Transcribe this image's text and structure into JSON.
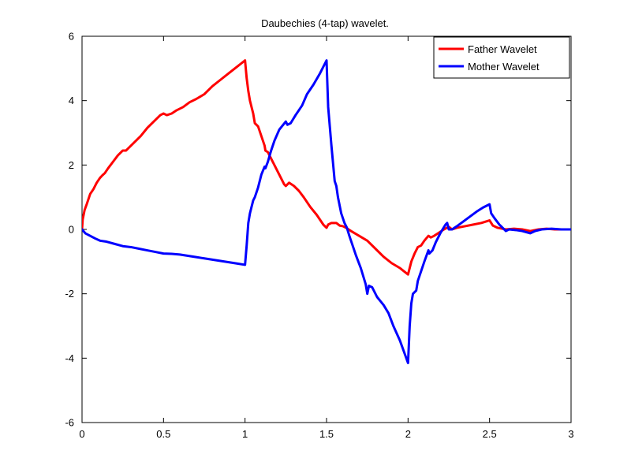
{
  "chart_data": {
    "type": "line",
    "title": "Daubechies (4-tap) wavelet.",
    "xlabel": "",
    "ylabel": "",
    "xlim": [
      0,
      3
    ],
    "ylim": [
      -6,
      6
    ],
    "x_ticks": [
      0,
      0.5,
      1,
      1.5,
      2,
      2.5,
      3
    ],
    "x_tick_labels": [
      "0",
      "0.5",
      "1",
      "1.5",
      "2",
      "2.5",
      "3"
    ],
    "y_ticks": [
      -6,
      -4,
      -2,
      0,
      2,
      4,
      6
    ],
    "y_tick_labels": [
      "-6",
      "-4",
      "-2",
      "0",
      "2",
      "4",
      "6"
    ],
    "grid": false,
    "legend": {
      "position": "top-right"
    },
    "series": [
      {
        "name": "Father Wavelet",
        "color": "#ff0000",
        "points": [
          [
            0,
            0.0
          ],
          [
            0.0039,
            0.3
          ],
          [
            0.0156,
            0.6
          ],
          [
            0.03,
            0.8
          ],
          [
            0.05,
            1.1
          ],
          [
            0.07,
            1.25
          ],
          [
            0.09,
            1.45
          ],
          [
            0.11,
            1.6
          ],
          [
            0.125,
            1.68
          ],
          [
            0.14,
            1.75
          ],
          [
            0.16,
            1.9
          ],
          [
            0.19,
            2.1
          ],
          [
            0.22,
            2.3
          ],
          [
            0.25,
            2.45
          ],
          [
            0.27,
            2.45
          ],
          [
            0.3,
            2.6
          ],
          [
            0.33,
            2.75
          ],
          [
            0.36,
            2.9
          ],
          [
            0.4,
            3.15
          ],
          [
            0.44,
            3.35
          ],
          [
            0.48,
            3.55
          ],
          [
            0.5,
            3.6
          ],
          [
            0.52,
            3.55
          ],
          [
            0.55,
            3.6
          ],
          [
            0.58,
            3.7
          ],
          [
            0.62,
            3.8
          ],
          [
            0.66,
            3.95
          ],
          [
            0.7,
            4.05
          ],
          [
            0.75,
            4.2
          ],
          [
            0.8,
            4.45
          ],
          [
            0.85,
            4.65
          ],
          [
            0.9,
            4.85
          ],
          [
            0.95,
            5.05
          ],
          [
            1.0,
            5.25
          ],
          [
            1.01,
            4.7
          ],
          [
            1.02,
            4.3
          ],
          [
            1.03,
            4.0
          ],
          [
            1.05,
            3.6
          ],
          [
            1.06,
            3.3
          ],
          [
            1.08,
            3.2
          ],
          [
            1.1,
            2.9
          ],
          [
            1.12,
            2.6
          ],
          [
            1.125,
            2.45
          ],
          [
            1.14,
            2.4
          ],
          [
            1.16,
            2.2
          ],
          [
            1.18,
            2.0
          ],
          [
            1.21,
            1.7
          ],
          [
            1.24,
            1.4
          ],
          [
            1.25,
            1.35
          ],
          [
            1.27,
            1.45
          ],
          [
            1.3,
            1.35
          ],
          [
            1.33,
            1.2
          ],
          [
            1.36,
            1.0
          ],
          [
            1.4,
            0.7
          ],
          [
            1.44,
            0.45
          ],
          [
            1.48,
            0.15
          ],
          [
            1.5,
            0.05
          ],
          [
            1.51,
            0.15
          ],
          [
            1.53,
            0.2
          ],
          [
            1.56,
            0.2
          ],
          [
            1.58,
            0.12
          ],
          [
            1.6,
            0.1
          ],
          [
            1.62,
            0.05
          ],
          [
            1.65,
            -0.05
          ],
          [
            1.7,
            -0.2
          ],
          [
            1.75,
            -0.35
          ],
          [
            1.8,
            -0.6
          ],
          [
            1.85,
            -0.85
          ],
          [
            1.9,
            -1.05
          ],
          [
            1.95,
            -1.2
          ],
          [
            2.0,
            -1.4
          ],
          [
            2.02,
            -1.0
          ],
          [
            2.04,
            -0.75
          ],
          [
            2.06,
            -0.55
          ],
          [
            2.08,
            -0.5
          ],
          [
            2.1,
            -0.35
          ],
          [
            2.125,
            -0.2
          ],
          [
            2.14,
            -0.25
          ],
          [
            2.16,
            -0.2
          ],
          [
            2.19,
            -0.1
          ],
          [
            2.22,
            0.0
          ],
          [
            2.25,
            0.08
          ],
          [
            2.27,
            0.0
          ],
          [
            2.3,
            0.05
          ],
          [
            2.35,
            0.1
          ],
          [
            2.4,
            0.15
          ],
          [
            2.45,
            0.2
          ],
          [
            2.5,
            0.28
          ],
          [
            2.52,
            0.12
          ],
          [
            2.55,
            0.05
          ],
          [
            2.6,
            0.0
          ],
          [
            2.65,
            0.02
          ],
          [
            2.7,
            0.0
          ],
          [
            2.75,
            -0.05
          ],
          [
            2.8,
            0.0
          ],
          [
            2.85,
            0.02
          ],
          [
            2.9,
            0.0
          ],
          [
            3.0,
            0.0
          ]
        ]
      },
      {
        "name": "Mother Wavelet",
        "color": "#0000ff",
        "points": [
          [
            0,
            0.0
          ],
          [
            0.02,
            -0.12
          ],
          [
            0.05,
            -0.2
          ],
          [
            0.08,
            -0.28
          ],
          [
            0.11,
            -0.35
          ],
          [
            0.15,
            -0.38
          ],
          [
            0.2,
            -0.45
          ],
          [
            0.25,
            -0.52
          ],
          [
            0.3,
            -0.55
          ],
          [
            0.35,
            -0.6
          ],
          [
            0.4,
            -0.65
          ],
          [
            0.45,
            -0.7
          ],
          [
            0.5,
            -0.75
          ],
          [
            0.55,
            -0.76
          ],
          [
            0.6,
            -0.78
          ],
          [
            0.65,
            -0.82
          ],
          [
            0.7,
            -0.86
          ],
          [
            0.75,
            -0.9
          ],
          [
            0.8,
            -0.94
          ],
          [
            0.85,
            -0.98
          ],
          [
            0.9,
            -1.02
          ],
          [
            0.95,
            -1.06
          ],
          [
            1.0,
            -1.1
          ],
          [
            1.01,
            -0.5
          ],
          [
            1.02,
            0.2
          ],
          [
            1.03,
            0.5
          ],
          [
            1.05,
            0.9
          ],
          [
            1.06,
            1.0
          ],
          [
            1.08,
            1.3
          ],
          [
            1.1,
            1.7
          ],
          [
            1.12,
            1.95
          ],
          [
            1.125,
            1.9
          ],
          [
            1.14,
            2.1
          ],
          [
            1.16,
            2.45
          ],
          [
            1.18,
            2.75
          ],
          [
            1.21,
            3.1
          ],
          [
            1.25,
            3.35
          ],
          [
            1.26,
            3.25
          ],
          [
            1.28,
            3.3
          ],
          [
            1.31,
            3.55
          ],
          [
            1.35,
            3.85
          ],
          [
            1.38,
            4.2
          ],
          [
            1.42,
            4.5
          ],
          [
            1.46,
            4.85
          ],
          [
            1.5,
            5.25
          ],
          [
            1.51,
            3.8
          ],
          [
            1.53,
            2.6
          ],
          [
            1.55,
            1.5
          ],
          [
            1.56,
            1.35
          ],
          [
            1.57,
            1.0
          ],
          [
            1.59,
            0.5
          ],
          [
            1.61,
            0.2
          ],
          [
            1.625,
            0.05
          ],
          [
            1.64,
            -0.2
          ],
          [
            1.66,
            -0.5
          ],
          [
            1.68,
            -0.8
          ],
          [
            1.71,
            -1.2
          ],
          [
            1.74,
            -1.7
          ],
          [
            1.75,
            -2.0
          ],
          [
            1.76,
            -1.75
          ],
          [
            1.78,
            -1.8
          ],
          [
            1.81,
            -2.1
          ],
          [
            1.85,
            -2.35
          ],
          [
            1.88,
            -2.6
          ],
          [
            1.91,
            -3.0
          ],
          [
            1.95,
            -3.45
          ],
          [
            2.0,
            -4.15
          ],
          [
            2.01,
            -3.0
          ],
          [
            2.02,
            -2.3
          ],
          [
            2.03,
            -2.0
          ],
          [
            2.05,
            -1.9
          ],
          [
            2.06,
            -1.6
          ],
          [
            2.08,
            -1.3
          ],
          [
            2.1,
            -1.0
          ],
          [
            2.125,
            -0.65
          ],
          [
            2.13,
            -0.75
          ],
          [
            2.15,
            -0.65
          ],
          [
            2.17,
            -0.4
          ],
          [
            2.2,
            -0.1
          ],
          [
            2.23,
            0.15
          ],
          [
            2.24,
            0.2
          ],
          [
            2.25,
            0.0
          ],
          [
            2.27,
            0.0
          ],
          [
            2.3,
            0.1
          ],
          [
            2.34,
            0.25
          ],
          [
            2.38,
            0.4
          ],
          [
            2.42,
            0.55
          ],
          [
            2.46,
            0.68
          ],
          [
            2.5,
            0.78
          ],
          [
            2.51,
            0.5
          ],
          [
            2.53,
            0.35
          ],
          [
            2.56,
            0.15
          ],
          [
            2.6,
            -0.05
          ],
          [
            2.62,
            0.0
          ],
          [
            2.66,
            -0.02
          ],
          [
            2.7,
            -0.05
          ],
          [
            2.75,
            -0.12
          ],
          [
            2.78,
            -0.05
          ],
          [
            2.82,
            0.0
          ],
          [
            2.88,
            0.02
          ],
          [
            2.94,
            0.0
          ],
          [
            3.0,
            0.0
          ]
        ]
      }
    ]
  }
}
